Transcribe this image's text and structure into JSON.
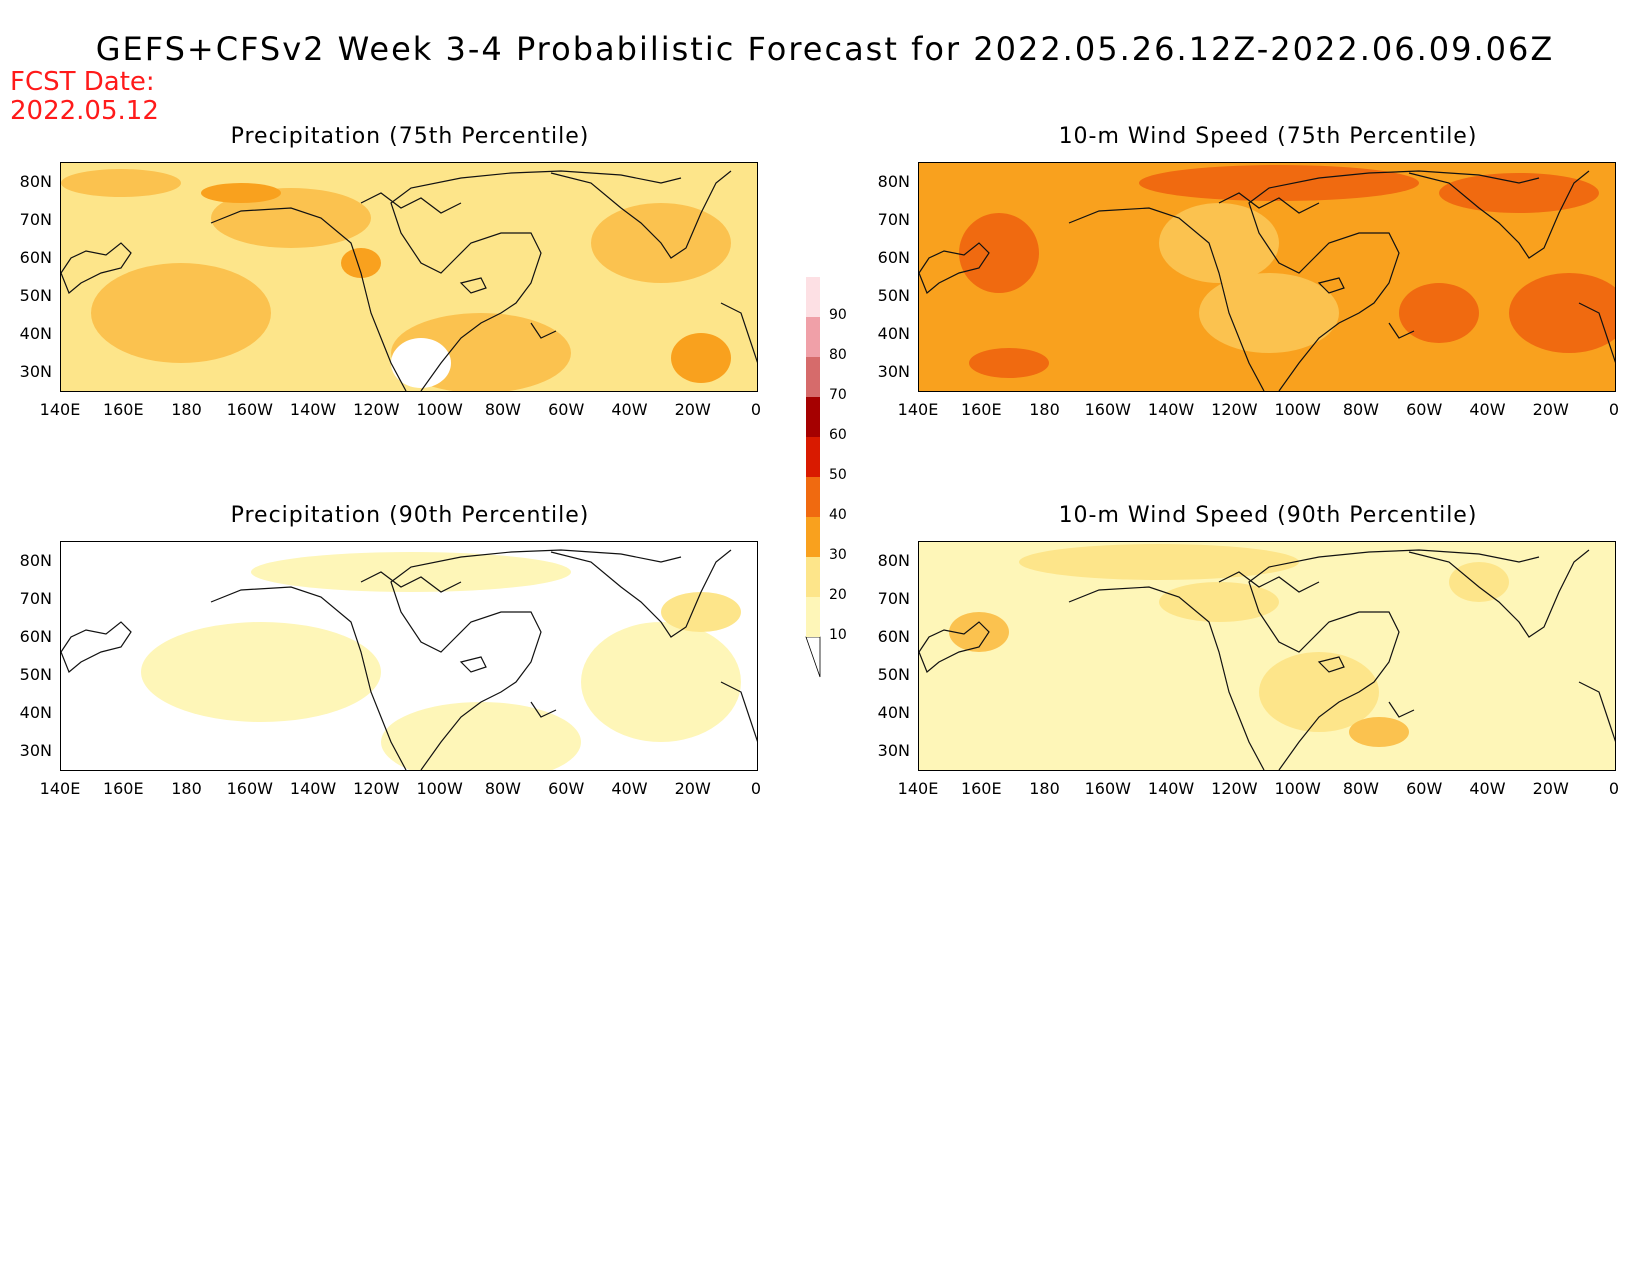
{
  "header": {
    "title": "GEFS+CFSv2 Week 3-4 Probabilistic Forecast for 2022.05.26.12Z-2022.06.09.06Z",
    "fcst_label": "FCST Date:",
    "fcst_date": "2022.05.12"
  },
  "axes": {
    "lat_labels": [
      "80N",
      "70N",
      "60N",
      "50N",
      "40N",
      "30N"
    ],
    "lon_labels": [
      "140E",
      "160E",
      "180",
      "160W",
      "140W",
      "120W",
      "100W",
      "80W",
      "60W",
      "40W",
      "20W",
      "0"
    ]
  },
  "panels": [
    {
      "title": "Precipitation (75th Percentile)",
      "base_color": "#fde58a",
      "blob_color": "#fbc24f",
      "accent_color": "#f9a11e"
    },
    {
      "title": "10-m Wind Speed (75th Percentile)",
      "base_color": "#f9a11e",
      "blob_color": "#fbc24f",
      "accent_color": "#f06a10"
    },
    {
      "title": "Precipitation (90th Percentile)",
      "base_color": "#ffffff",
      "blob_color": "#fef6b8",
      "accent_color": "#fde58a"
    },
    {
      "title": "10-m Wind Speed (90th Percentile)",
      "base_color": "#fef6b8",
      "blob_color": "#fde58a",
      "accent_color": "#fbc24f"
    }
  ],
  "colorbar": {
    "levels": [
      "10",
      "20",
      "30",
      "40",
      "50",
      "60",
      "70",
      "80",
      "90"
    ],
    "colors": [
      "#fef6b8",
      "#fde58a",
      "#f9a11e",
      "#f06a10",
      "#d91a00",
      "#a50000",
      "#d66b6b",
      "#f0a0a8",
      "#fde0e4"
    ]
  }
}
